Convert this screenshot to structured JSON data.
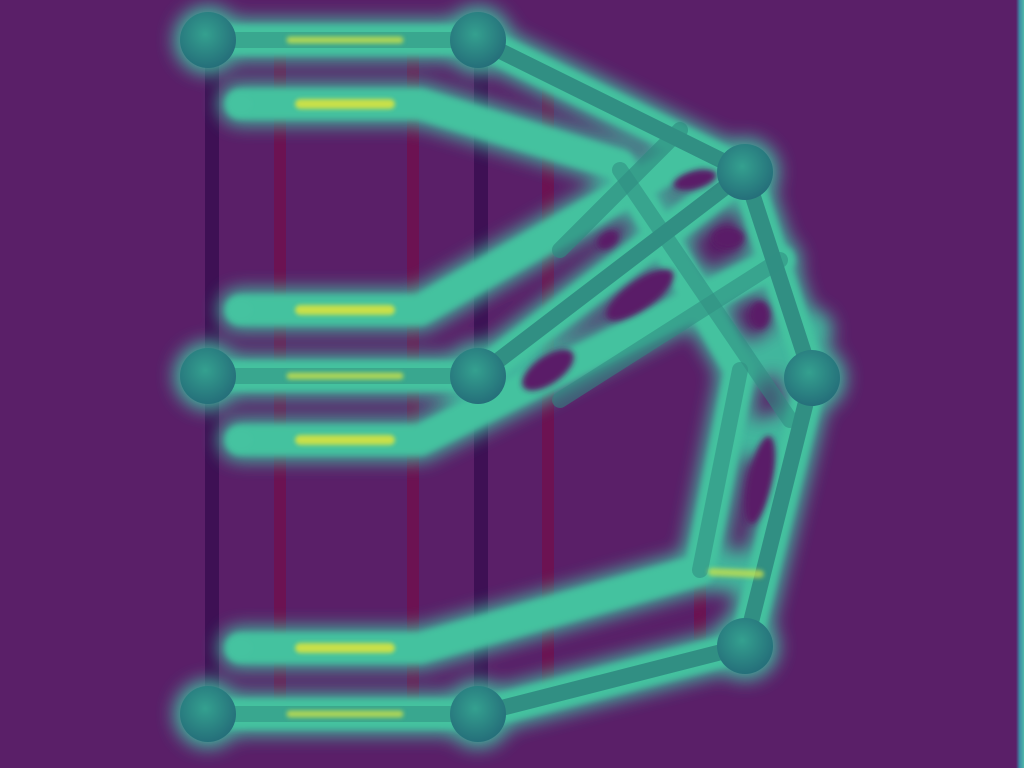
{
  "image": {
    "description_label": "",
    "colors": {
      "background": "#5a1f68",
      "glow": "#3fbfa0",
      "glow_soft": "#2f9f9a",
      "core": "#c8e04a",
      "core_bright": "#e8ef58",
      "joint": "#2f8f86",
      "strut": "#2f8a80",
      "vertical_dark": "#3b0f52",
      "vertical_magenta": "#70104f"
    },
    "icons": {
      "node": "node-icon",
      "edge": "edge-icon"
    }
  }
}
